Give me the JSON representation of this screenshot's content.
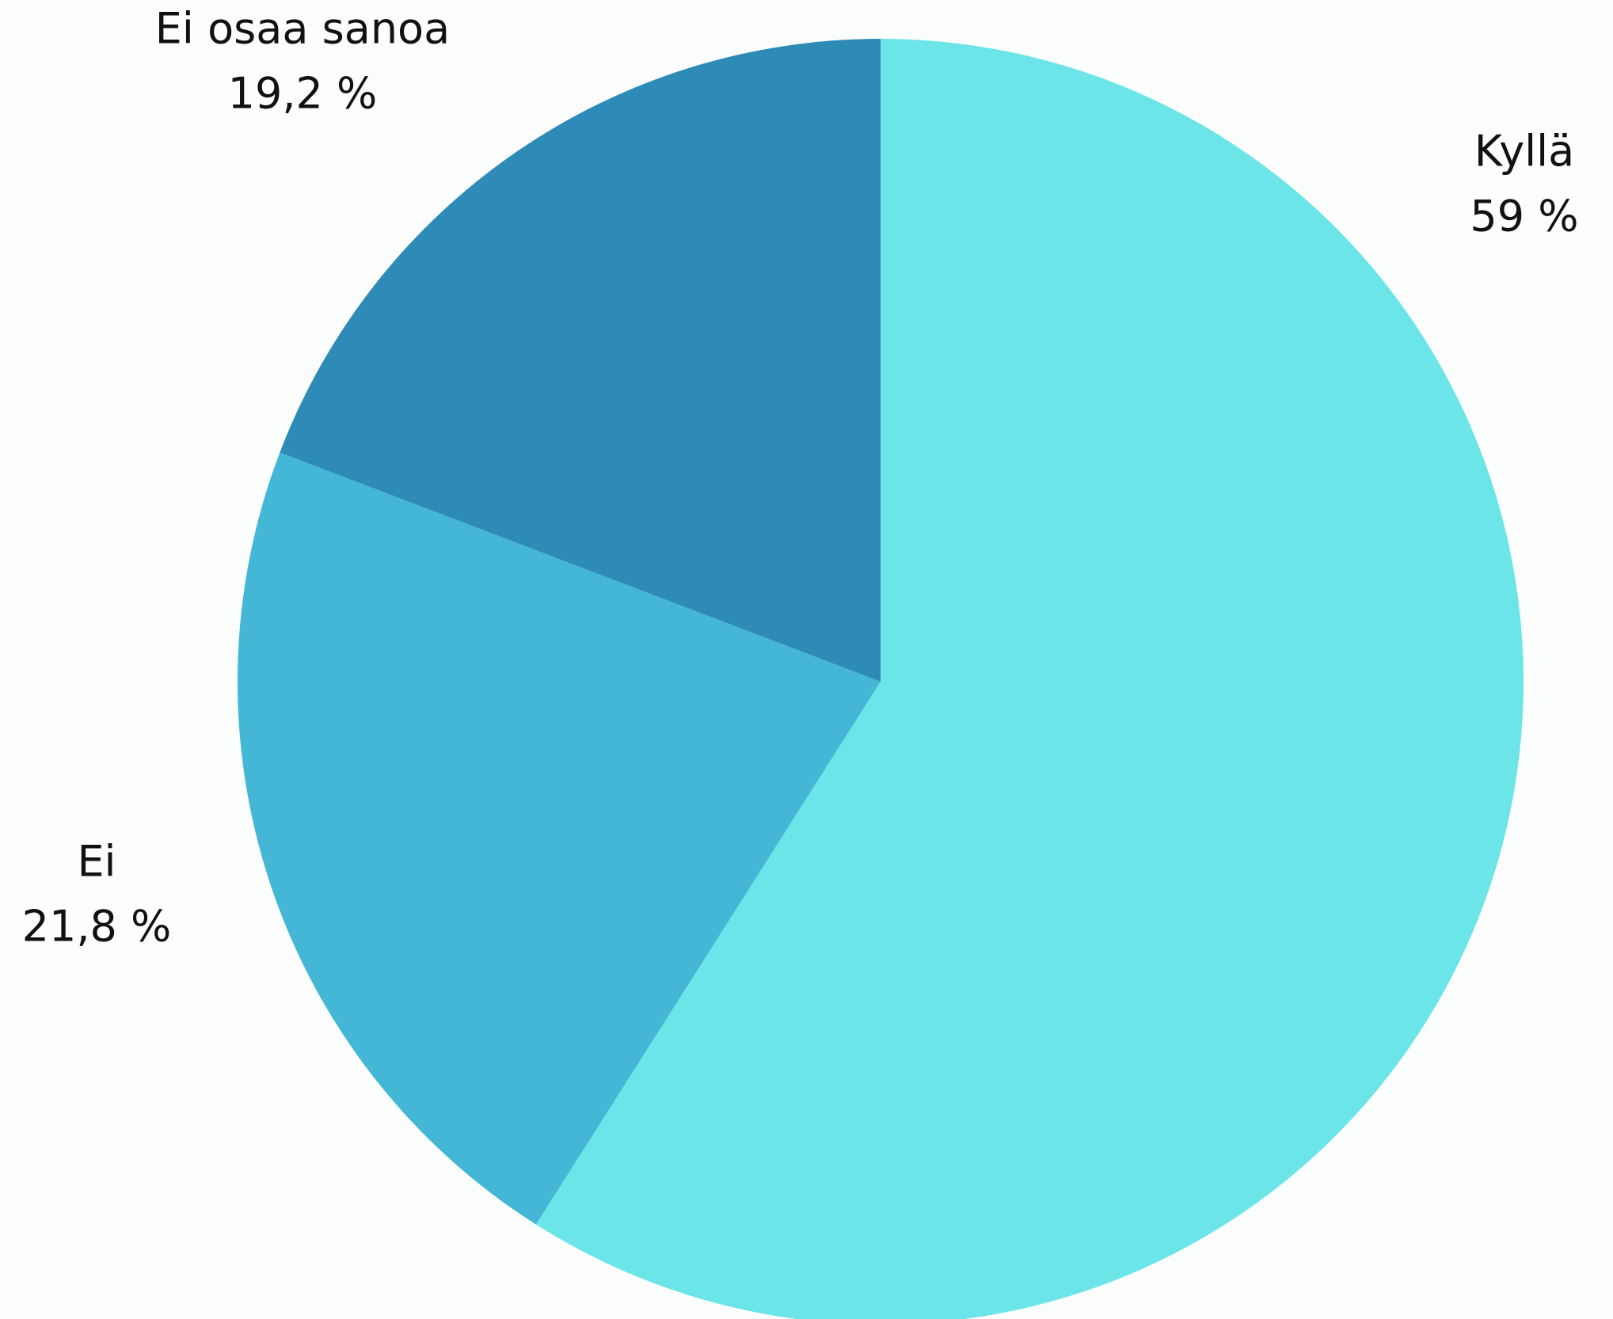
{
  "chart_data": {
    "type": "pie",
    "start": "top",
    "direction": "clockwise",
    "legend": "none",
    "slices": [
      {
        "label": "Kyllä",
        "value": 59,
        "value_label": "59 %",
        "color": "#6be5e8"
      },
      {
        "label": "Ei",
        "value": 21.8,
        "value_label": "21,8 %",
        "color": "#43b7d5"
      },
      {
        "label": "Ei osaa sanoa",
        "value": 19.2,
        "value_label": "19,2 %",
        "color": "#2e8bb8"
      }
    ]
  }
}
